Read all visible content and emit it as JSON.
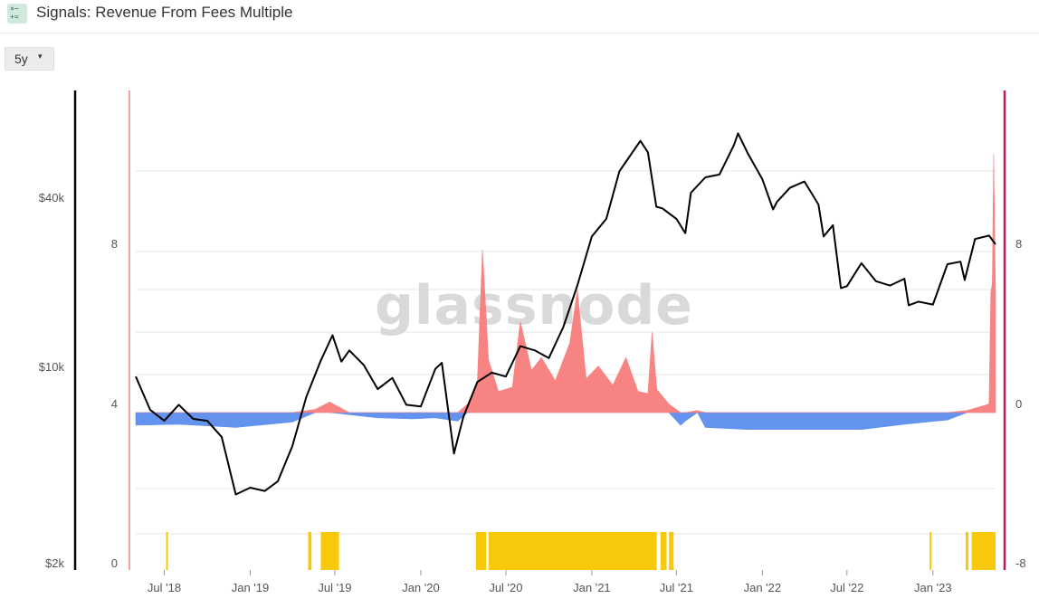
{
  "header": {
    "title": "Signals: Revenue From Fees Multiple",
    "icon": "calculator-icon"
  },
  "controls": {
    "range_label": "5y",
    "range_caret": "▾"
  },
  "watermark": "glassnode",
  "colors": {
    "price": "#000000",
    "positive": "#f87d7d",
    "negative": "#5b8def",
    "signal": "#f7c90a",
    "right_axis_line": "#c2185b",
    "left_band_line": "#f5a3a3",
    "grid": "#e6e6e6"
  },
  "chart_data": {
    "type": "line",
    "x_range": [
      "2018-05-01",
      "2023-05-15"
    ],
    "x_ticks": [
      "Jul '18",
      "Jan '19",
      "Jul '19",
      "Jan '20",
      "Jul '20",
      "Jan '21",
      "Jul '21",
      "Jan '22",
      "Jul '22",
      "Jan '23"
    ],
    "y_axes": {
      "price": {
        "scale": "log",
        "ticks": [
          "$2k",
          "$10k",
          "$40k"
        ],
        "tick_values": [
          2000,
          10000,
          40000
        ]
      },
      "signal_band": {
        "ticks": [
          "0",
          "4",
          "8"
        ]
      },
      "multiple": {
        "ticks": [
          "-8",
          "0",
          "8"
        ],
        "range": [
          -8,
          8
        ]
      }
    },
    "series": [
      {
        "type": "line",
        "points": [
          [
            "2018-05-01",
            9200
          ],
          [
            "2018-06-01",
            7000
          ],
          [
            "2018-07-01",
            6400
          ],
          [
            "2018-08-01",
            7300
          ],
          [
            "2018-09-01",
            6500
          ],
          [
            "2018-10-01",
            6400
          ],
          [
            "2018-11-01",
            5600
          ],
          [
            "2018-12-01",
            3500
          ],
          [
            "2019-01-01",
            3700
          ],
          [
            "2019-02-01",
            3600
          ],
          [
            "2019-03-01",
            3900
          ],
          [
            "2019-04-01",
            5200
          ],
          [
            "2019-05-01",
            7800
          ],
          [
            "2019-06-01",
            10500
          ],
          [
            "2019-06-26",
            12900
          ],
          [
            "2019-07-15",
            10400
          ],
          [
            "2019-08-01",
            11400
          ],
          [
            "2019-09-01",
            10100
          ],
          [
            "2019-10-01",
            8300
          ],
          [
            "2019-11-01",
            9100
          ],
          [
            "2019-12-01",
            7300
          ],
          [
            "2020-01-01",
            7200
          ],
          [
            "2020-02-01",
            9800
          ],
          [
            "2020-02-15",
            10300
          ],
          [
            "2020-03-12",
            4900
          ],
          [
            "2020-04-01",
            6600
          ],
          [
            "2020-05-01",
            8800
          ],
          [
            "2020-06-01",
            9500
          ],
          [
            "2020-07-01",
            9200
          ],
          [
            "2020-08-01",
            11800
          ],
          [
            "2020-09-01",
            11400
          ],
          [
            "2020-10-01",
            10700
          ],
          [
            "2020-11-01",
            13800
          ],
          [
            "2020-12-01",
            19400
          ],
          [
            "2021-01-01",
            29000
          ],
          [
            "2021-02-01",
            33500
          ],
          [
            "2021-03-01",
            49500
          ],
          [
            "2021-04-01",
            58800
          ],
          [
            "2021-04-15",
            63500
          ],
          [
            "2021-05-01",
            57800
          ],
          [
            "2021-05-19",
            37000
          ],
          [
            "2021-06-01",
            36500
          ],
          [
            "2021-07-01",
            33500
          ],
          [
            "2021-07-20",
            29800
          ],
          [
            "2021-08-01",
            41500
          ],
          [
            "2021-09-01",
            47100
          ],
          [
            "2021-10-01",
            48200
          ],
          [
            "2021-11-01",
            61300
          ],
          [
            "2021-11-10",
            67500
          ],
          [
            "2021-12-01",
            57200
          ],
          [
            "2022-01-01",
            46300
          ],
          [
            "2022-01-24",
            36200
          ],
          [
            "2022-02-01",
            38500
          ],
          [
            "2022-03-01",
            43200
          ],
          [
            "2022-04-01",
            45500
          ],
          [
            "2022-05-01",
            37700
          ],
          [
            "2022-05-12",
            29000
          ],
          [
            "2022-06-01",
            31800
          ],
          [
            "2022-06-18",
            19000
          ],
          [
            "2022-07-01",
            19300
          ],
          [
            "2022-08-01",
            23300
          ],
          [
            "2022-09-01",
            20100
          ],
          [
            "2022-10-01",
            19400
          ],
          [
            "2022-11-01",
            20500
          ],
          [
            "2022-11-10",
            16500
          ],
          [
            "2022-12-01",
            17000
          ],
          [
            "2023-01-01",
            16600
          ],
          [
            "2023-02-01",
            23100
          ],
          [
            "2023-03-01",
            23600
          ],
          [
            "2023-03-10",
            20300
          ],
          [
            "2023-04-01",
            28400
          ],
          [
            "2023-05-01",
            29200
          ],
          [
            "2023-05-15",
            27200
          ]
        ]
      },
      {
        "type": "area",
        "points": [
          [
            "2018-05-01",
            -0.6
          ],
          [
            "2018-08-01",
            -0.55
          ],
          [
            "2018-12-01",
            -0.7
          ],
          [
            "2019-04-01",
            -0.45
          ],
          [
            "2019-05-20",
            0.15
          ],
          [
            "2019-06-20",
            0.5
          ],
          [
            "2019-08-01",
            -0.1
          ],
          [
            "2019-10-01",
            -0.25
          ],
          [
            "2019-12-15",
            -0.3
          ],
          [
            "2020-02-01",
            -0.25
          ],
          [
            "2020-03-20",
            -0.4
          ],
          [
            "2020-04-10",
            0.4
          ],
          [
            "2020-05-01",
            1.4
          ],
          [
            "2020-05-12",
            7.7
          ],
          [
            "2020-05-25",
            2.5
          ],
          [
            "2020-06-15",
            1.0
          ],
          [
            "2020-07-15",
            1.2
          ],
          [
            "2020-08-01",
            4.3
          ],
          [
            "2020-08-25",
            2.0
          ],
          [
            "2020-09-15",
            2.6
          ],
          [
            "2020-10-15",
            1.5
          ],
          [
            "2020-11-15",
            3.3
          ],
          [
            "2020-12-01",
            5.8
          ],
          [
            "2020-12-20",
            1.6
          ],
          [
            "2021-01-15",
            2.2
          ],
          [
            "2021-02-15",
            1.3
          ],
          [
            "2021-03-15",
            2.6
          ],
          [
            "2021-04-10",
            1.0
          ],
          [
            "2021-05-01",
            0.9
          ],
          [
            "2021-05-10",
            3.8
          ],
          [
            "2021-05-20",
            1.1
          ],
          [
            "2021-06-15",
            0.4
          ],
          [
            "2021-07-10",
            -0.6
          ],
          [
            "2021-07-20",
            -0.4
          ],
          [
            "2021-08-15",
            0.1
          ],
          [
            "2021-09-01",
            -0.7
          ],
          [
            "2021-12-01",
            -0.8
          ],
          [
            "2022-04-01",
            -0.8
          ],
          [
            "2022-08-01",
            -0.8
          ],
          [
            "2022-11-01",
            -0.55
          ],
          [
            "2023-02-01",
            -0.35
          ],
          [
            "2023-03-15",
            0.1
          ],
          [
            "2023-04-15",
            0.3
          ],
          [
            "2023-05-01",
            0.4
          ],
          [
            "2023-05-05",
            5.7
          ],
          [
            "2023-05-08",
            6.1
          ],
          [
            "2023-05-11",
            12.2
          ],
          [
            "2023-05-15",
            5.6
          ]
        ]
      },
      {
        "type": "bar",
        "values": [
          [
            "2018-07-05",
            "2018-07-09"
          ],
          [
            "2019-05-05",
            "2019-05-12"
          ],
          [
            "2019-06-01",
            "2019-07-10"
          ],
          [
            "2020-04-28",
            "2020-05-20"
          ],
          [
            "2020-05-25",
            "2021-05-20"
          ],
          [
            "2021-05-28",
            "2021-06-10"
          ],
          [
            "2021-06-15",
            "2021-06-25"
          ],
          [
            "2022-12-25",
            "2022-12-29"
          ],
          [
            "2023-03-12",
            "2023-03-18"
          ],
          [
            "2023-03-25",
            "2023-05-15"
          ]
        ]
      }
    ]
  }
}
